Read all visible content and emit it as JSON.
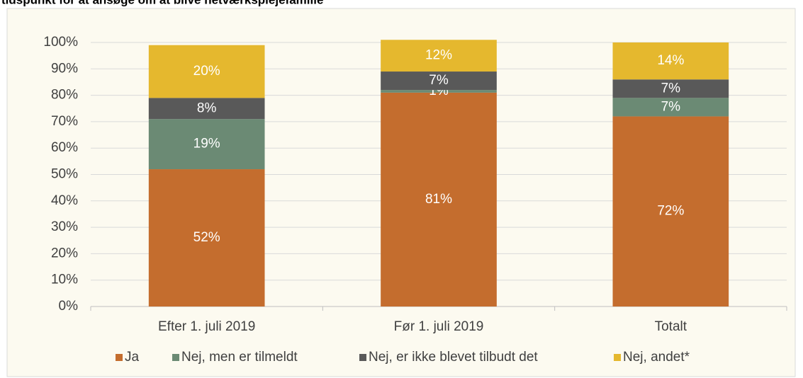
{
  "chart_data": {
    "type": "stacked_bar",
    "title": "tidspunkt for at ansøge om at blive netværksplejefamilie",
    "categories": [
      "Efter 1. juli 2019",
      "Før 1. juli 2019",
      "Totalt"
    ],
    "series": [
      {
        "name": "Ja",
        "color": "#c46d2e",
        "values": [
          52,
          81,
          72
        ],
        "value_labels": [
          "52%",
          "81%",
          "72%"
        ]
      },
      {
        "name": "Nej, men er tilmeldt",
        "color": "#6b8a74",
        "values": [
          19,
          1,
          7
        ],
        "value_labels": [
          "19%",
          "1%",
          "7%"
        ]
      },
      {
        "name": "Nej, er ikke blevet tilbudt det",
        "color": "#595959",
        "values": [
          8,
          7,
          7
        ],
        "value_labels": [
          "8%",
          "7%",
          "7%"
        ]
      },
      {
        "name": "Nej, andet*",
        "color": "#e5b82e",
        "values": [
          20,
          12,
          14
        ],
        "value_labels": [
          "20%",
          "12%",
          "14%"
        ]
      }
    ],
    "ylim": [
      0,
      100
    ],
    "yticks": [
      {
        "value": 0,
        "label": "0%"
      },
      {
        "value": 10,
        "label": "10%"
      },
      {
        "value": 20,
        "label": "20%"
      },
      {
        "value": 30,
        "label": "30%"
      },
      {
        "value": 40,
        "label": "40%"
      },
      {
        "value": 50,
        "label": "50%"
      },
      {
        "value": 60,
        "label": "60%"
      },
      {
        "value": 70,
        "label": "70%"
      },
      {
        "value": 80,
        "label": "80%"
      },
      {
        "value": 90,
        "label": "90%"
      },
      {
        "value": 100,
        "label": "100%"
      }
    ],
    "grid": true,
    "legend": "bottom"
  }
}
